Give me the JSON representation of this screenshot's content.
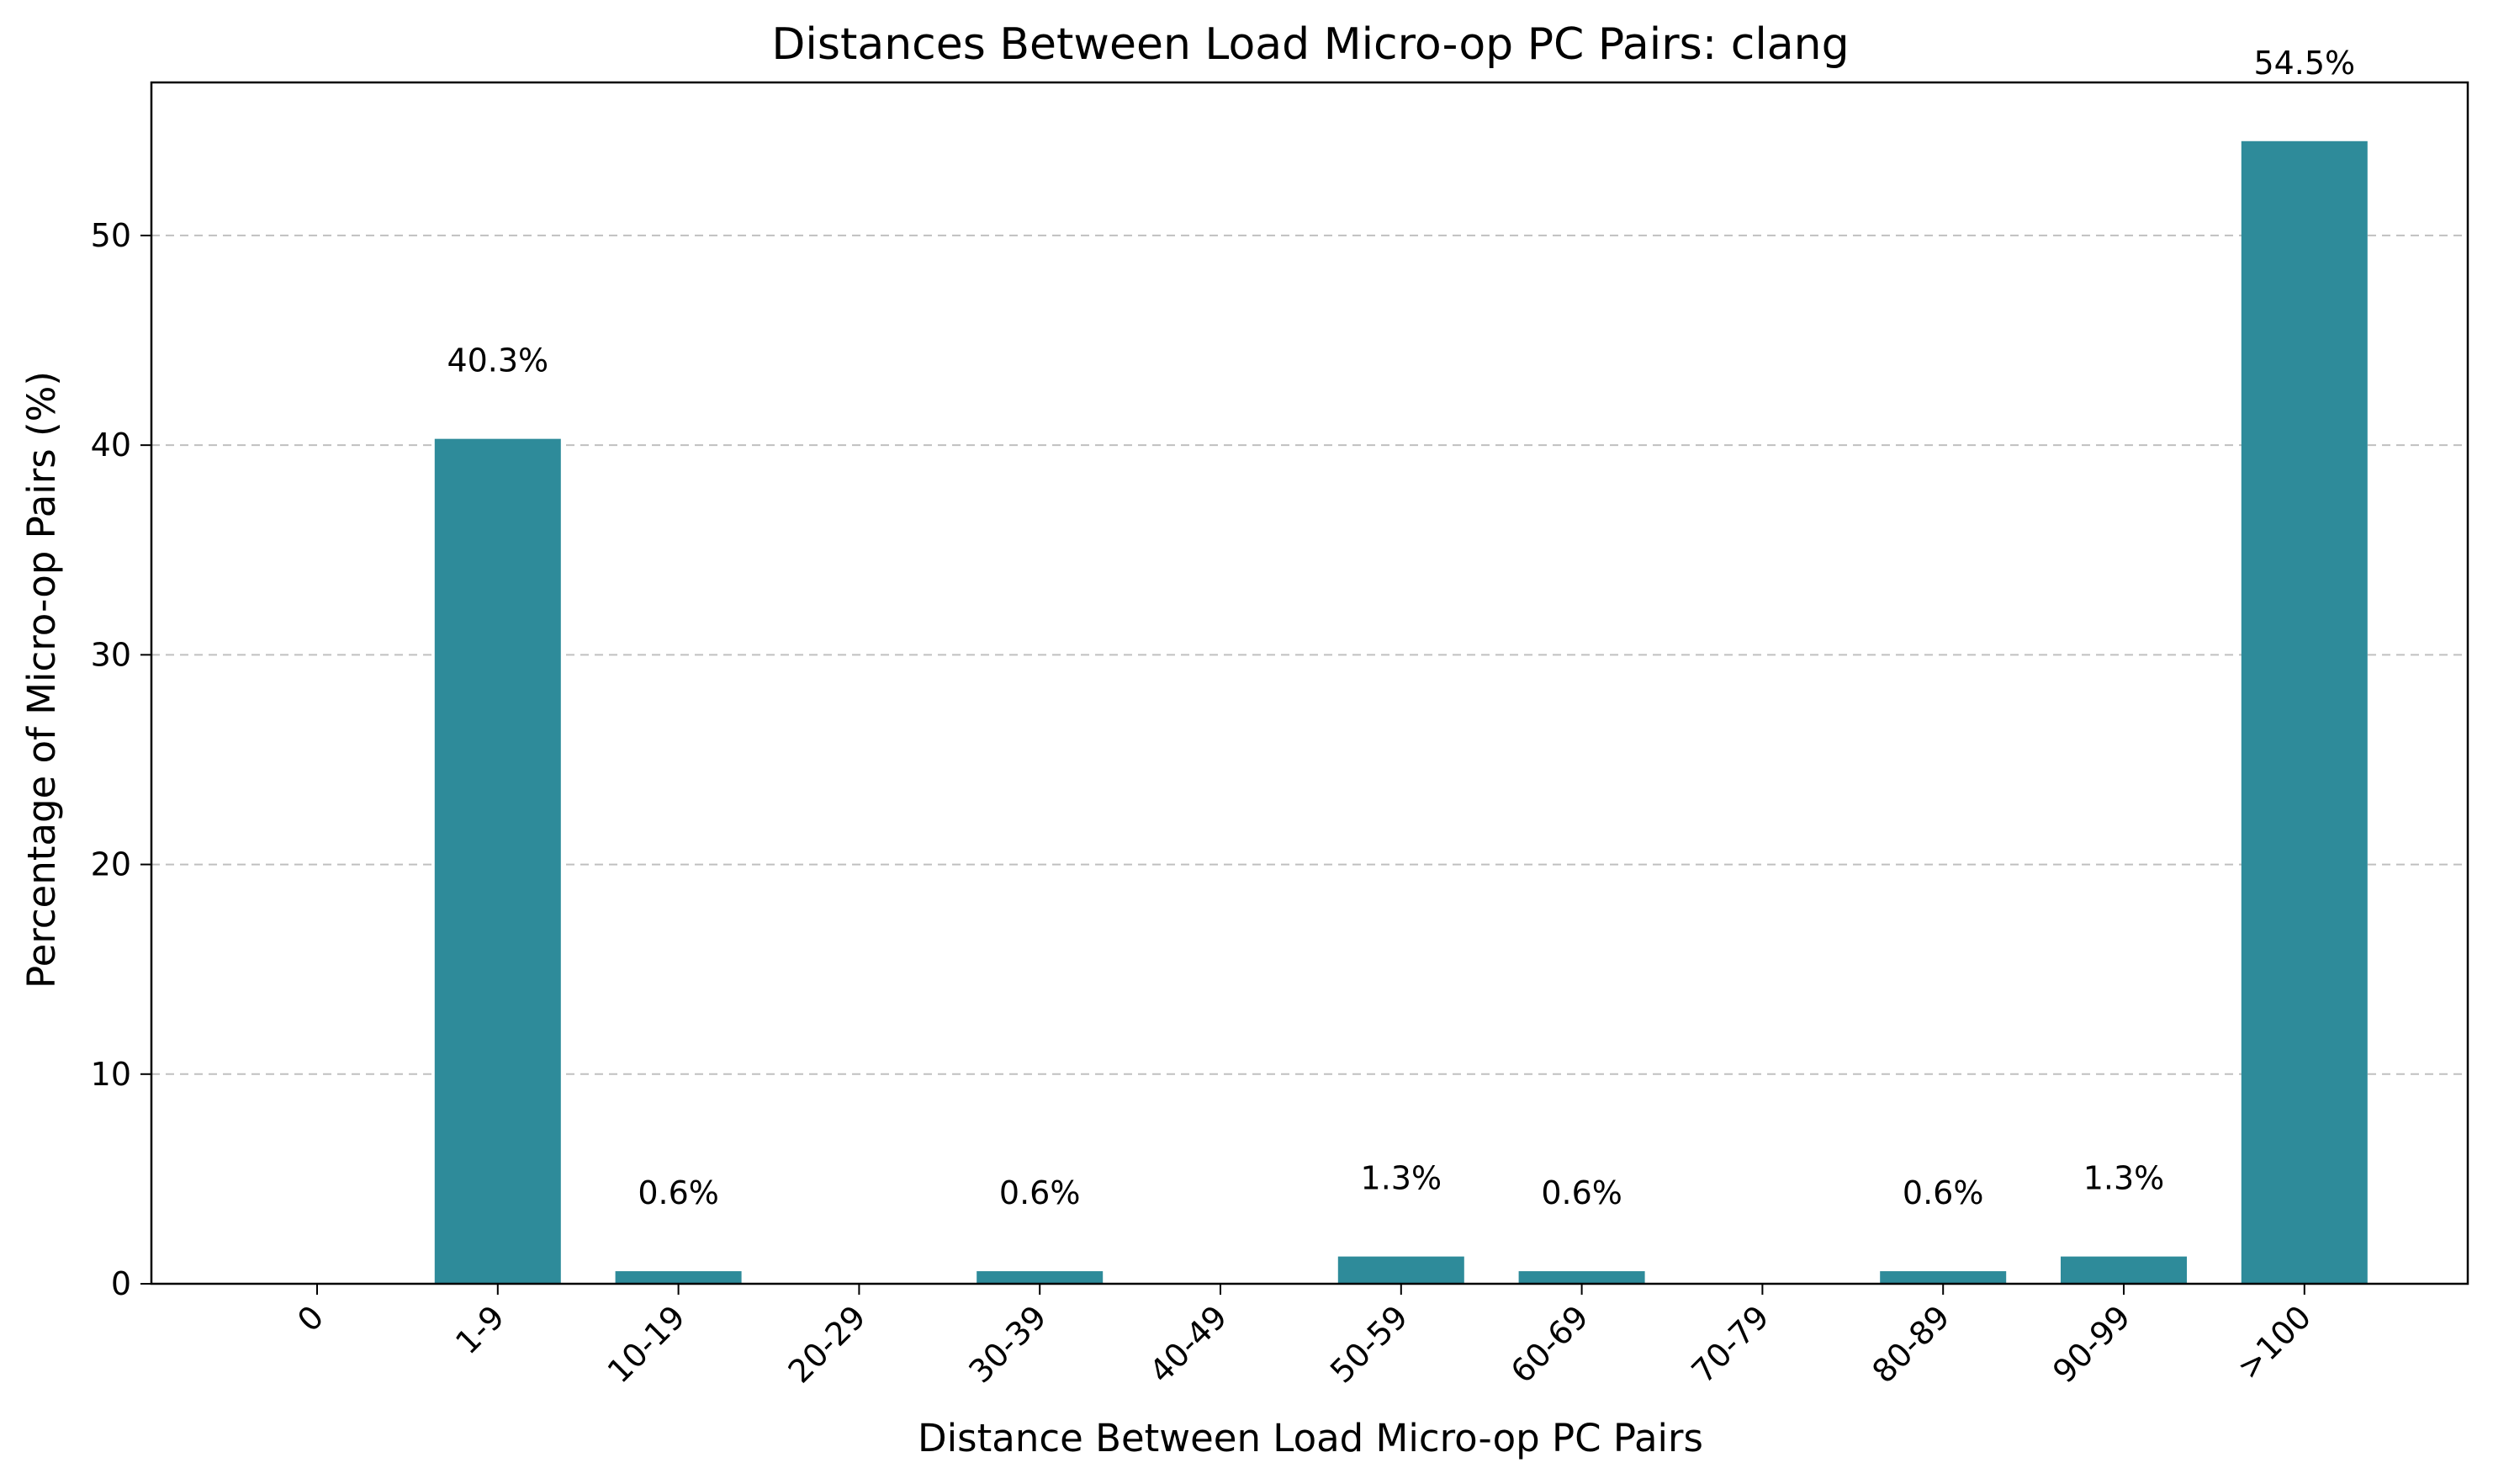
{
  "chart_data": {
    "type": "bar",
    "title": "Distances Between Load Micro-op PC Pairs: clang",
    "xlabel": "Distance Between Load Micro-op PC Pairs",
    "ylabel": "Percentage of Micro-op Pairs (%)",
    "categories": [
      "0",
      "1-9",
      "10-19",
      "20-29",
      "30-39",
      "40-49",
      "50-59",
      "60-69",
      "70-79",
      "80-89",
      "90-99",
      ">100"
    ],
    "values": [
      0,
      40.3,
      0.6,
      0,
      0.6,
      0,
      1.3,
      0.6,
      0,
      0.6,
      1.3,
      54.5
    ],
    "data_labels": [
      "",
      "40.3%",
      "0.6%",
      "",
      "0.6%",
      "",
      "1.3%",
      "0.6%",
      "",
      "0.6%",
      "1.3%",
      "54.5%"
    ],
    "ylim": [
      0,
      57.3
    ],
    "yticks": [
      0,
      10,
      20,
      30,
      40,
      50
    ],
    "grid": "y-dashed",
    "bar_color": "#2e8b9a",
    "legend": "none"
  }
}
